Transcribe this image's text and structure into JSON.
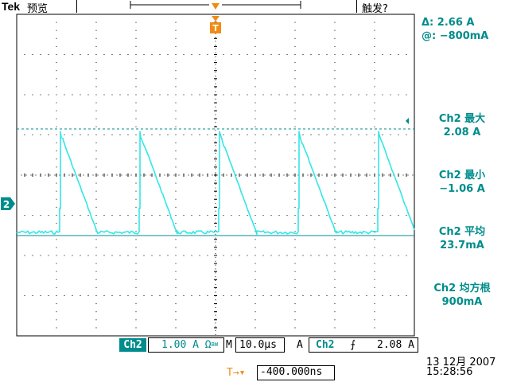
{
  "header": {
    "brand": "Tek",
    "mode": "预览",
    "trigger_status": "触发?"
  },
  "trigger_marker": "T",
  "channel_marker": "2",
  "cursor_readout": {
    "delta": "Δ:   2.66 A",
    "at": "@:  −800mA"
  },
  "measurements": [
    {
      "label": "Ch2 最大",
      "value": "2.08 A"
    },
    {
      "label": "Ch2 最小",
      "value": "−1.06 A"
    },
    {
      "label": "Ch2 平均",
      "value": "23.7mA"
    },
    {
      "label": "Ch2 均方根",
      "value": "900mA"
    }
  ],
  "status_bar": {
    "channel": "Ch2",
    "volts_div": "1.00 A Ω",
    "bw": "BW",
    "timebase_prefix": "M",
    "timebase": "10.0µs",
    "trig_source_prefix": "A",
    "trig_channel": "Ch2",
    "trig_slope": "⨍",
    "trig_level": "2.08 A"
  },
  "trigger_position": {
    "arrow": "T→▾",
    "value": "-400.000ns"
  },
  "datetime": {
    "date": "13 12月 2007",
    "time": "15:28:56"
  },
  "colors": {
    "trace": "#33e6e6",
    "accent": "#008c8c",
    "trigger": "#f08c14",
    "grid": "#000000"
  }
}
